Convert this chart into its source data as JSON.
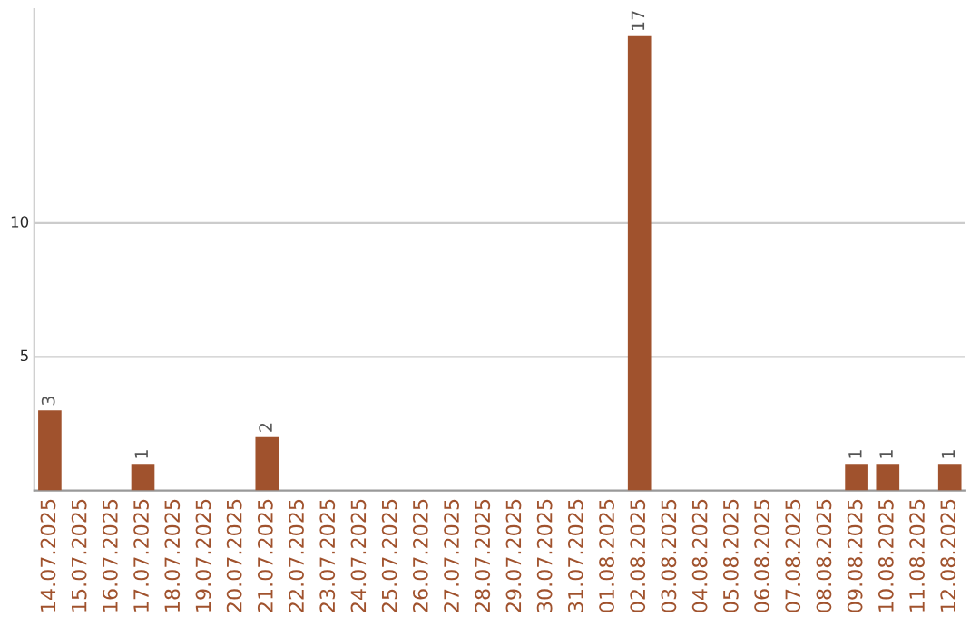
{
  "chart_data": {
    "type": "bar",
    "categories": [
      "14.07.2025",
      "15.07.2025",
      "16.07.2025",
      "17.07.2025",
      "18.07.2025",
      "19.07.2025",
      "20.07.2025",
      "21.07.2025",
      "22.07.2025",
      "23.07.2025",
      "24.07.2025",
      "25.07.2025",
      "26.07.2025",
      "27.07.2025",
      "28.07.2025",
      "29.07.2025",
      "30.07.2025",
      "31.07.2025",
      "01.08.2025",
      "02.08.2025",
      "03.08.2025",
      "04.08.2025",
      "05.08.2025",
      "06.08.2025",
      "07.08.2025",
      "08.08.2025",
      "09.08.2025",
      "10.08.2025",
      "11.08.2025",
      "12.08.2025"
    ],
    "values": [
      3,
      0,
      0,
      1,
      0,
      0,
      0,
      2,
      0,
      0,
      0,
      0,
      0,
      0,
      0,
      0,
      0,
      0,
      0,
      17,
      0,
      0,
      0,
      0,
      0,
      0,
      1,
      1,
      0,
      1
    ],
    "value_labels": [
      "3",
      null,
      null,
      "1",
      null,
      null,
      null,
      "2",
      null,
      null,
      null,
      null,
      null,
      null,
      null,
      null,
      null,
      null,
      null,
      "17",
      null,
      null,
      null,
      null,
      null,
      null,
      "1",
      "1",
      null,
      "1"
    ],
    "color": "#a0522d",
    "ylim": [
      0,
      18
    ],
    "yticks": [
      5,
      10
    ],
    "grid": "y",
    "legend": false
  }
}
